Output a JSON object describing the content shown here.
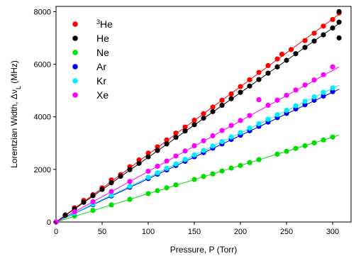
{
  "chart_data": {
    "type": "scatter",
    "xlabel": "Pressure, P (Torr)",
    "ylabel": "Lorentzian Width, Δν",
    "ylabel_sub": "L",
    "ylabel_unit": " (MHz)",
    "xlim": [
      0,
      320
    ],
    "ylim": [
      0,
      8200
    ],
    "xticks": [
      0,
      50,
      100,
      150,
      200,
      250,
      300
    ],
    "yticks": [
      0,
      2000,
      4000,
      6000,
      8000
    ],
    "grid": false,
    "legend_position": "top-left",
    "series": [
      {
        "name": "He",
        "name_sup": "3",
        "color": "#ff0000",
        "fit": [
          [
            0,
            0
          ],
          [
            307,
            7900
          ]
        ],
        "points": [
          [
            0,
            0
          ],
          [
            10,
            270
          ],
          [
            20,
            540
          ],
          [
            30,
            820
          ],
          [
            40,
            1040
          ],
          [
            50,
            1300
          ],
          [
            60,
            1600
          ],
          [
            70,
            1800
          ],
          [
            80,
            2100
          ],
          [
            90,
            2360
          ],
          [
            100,
            2620
          ],
          [
            110,
            2860
          ],
          [
            120,
            3120
          ],
          [
            130,
            3380
          ],
          [
            140,
            3610
          ],
          [
            150,
            3870
          ],
          [
            160,
            4120
          ],
          [
            170,
            4370
          ],
          [
            180,
            4630
          ],
          [
            190,
            4870
          ],
          [
            200,
            5150
          ],
          [
            210,
            5410
          ],
          [
            220,
            5690
          ],
          [
            230,
            5950
          ],
          [
            240,
            6200
          ],
          [
            245,
            6380
          ],
          [
            255,
            6560
          ],
          [
            270,
            6900
          ],
          [
            280,
            7180
          ],
          [
            290,
            7450
          ],
          [
            300,
            7700
          ],
          [
            307,
            7950
          ]
        ]
      },
      {
        "name": "He",
        "color": "#000000",
        "fit": [
          [
            0,
            0
          ],
          [
            307,
            7550
          ]
        ],
        "points": [
          [
            0,
            0
          ],
          [
            10,
            250
          ],
          [
            20,
            500
          ],
          [
            30,
            750
          ],
          [
            40,
            1000
          ],
          [
            50,
            1240
          ],
          [
            60,
            1490
          ],
          [
            70,
            1740
          ],
          [
            80,
            1990
          ],
          [
            90,
            2230
          ],
          [
            100,
            2480
          ],
          [
            110,
            2720
          ],
          [
            120,
            2970
          ],
          [
            130,
            3220
          ],
          [
            140,
            3460
          ],
          [
            150,
            3700
          ],
          [
            160,
            3950
          ],
          [
            170,
            4200
          ],
          [
            180,
            4440
          ],
          [
            190,
            4690
          ],
          [
            200,
            4930
          ],
          [
            210,
            5170
          ],
          [
            220,
            5420
          ],
          [
            230,
            5660
          ],
          [
            240,
            5900
          ],
          [
            250,
            6150
          ],
          [
            260,
            6400
          ],
          [
            270,
            6640
          ],
          [
            280,
            6880
          ],
          [
            290,
            7120
          ],
          [
            300,
            7380
          ],
          [
            307,
            7600
          ],
          [
            307,
            8000
          ],
          [
            307,
            7000
          ]
        ]
      },
      {
        "name": "Ne",
        "color": "#00dd00",
        "fit": [
          [
            0,
            0
          ],
          [
            307,
            3300
          ]
        ],
        "points": [
          [
            0,
            0
          ],
          [
            20,
            230
          ],
          [
            40,
            440
          ],
          [
            60,
            650
          ],
          [
            80,
            860
          ],
          [
            100,
            1080
          ],
          [
            110,
            1190
          ],
          [
            120,
            1300
          ],
          [
            130,
            1410
          ],
          [
            150,
            1620
          ],
          [
            160,
            1730
          ],
          [
            170,
            1830
          ],
          [
            180,
            1940
          ],
          [
            190,
            2050
          ],
          [
            200,
            2150
          ],
          [
            210,
            2260
          ],
          [
            220,
            2370
          ],
          [
            240,
            2580
          ],
          [
            250,
            2690
          ],
          [
            260,
            2800
          ],
          [
            270,
            2900
          ],
          [
            280,
            3010
          ],
          [
            290,
            3120
          ],
          [
            300,
            3230
          ]
        ]
      },
      {
        "name": "Ar",
        "color": "#0000ee",
        "fit": [
          [
            0,
            0
          ],
          [
            307,
            5050
          ]
        ],
        "points": [
          [
            0,
            0
          ],
          [
            20,
            330
          ],
          [
            40,
            660
          ],
          [
            60,
            990
          ],
          [
            80,
            1320
          ],
          [
            100,
            1650
          ],
          [
            110,
            1820
          ],
          [
            120,
            1980
          ],
          [
            130,
            2150
          ],
          [
            140,
            2310
          ],
          [
            150,
            2480
          ],
          [
            160,
            2640
          ],
          [
            170,
            2810
          ],
          [
            180,
            2970
          ],
          [
            190,
            3140
          ],
          [
            200,
            3300
          ],
          [
            210,
            3470
          ],
          [
            220,
            3640
          ],
          [
            230,
            3800
          ],
          [
            240,
            3970
          ],
          [
            250,
            4130
          ],
          [
            260,
            4300
          ],
          [
            270,
            4460
          ],
          [
            280,
            4630
          ],
          [
            290,
            4790
          ],
          [
            300,
            4960
          ]
        ]
      },
      {
        "name": "Kr",
        "color": "#00eeff",
        "fit": [
          [
            0,
            0
          ],
          [
            307,
            5200
          ]
        ],
        "points": [
          [
            0,
            0
          ],
          [
            20,
            340
          ],
          [
            40,
            680
          ],
          [
            60,
            1020
          ],
          [
            80,
            1360
          ],
          [
            100,
            1700
          ],
          [
            110,
            1870
          ],
          [
            120,
            2040
          ],
          [
            130,
            2210
          ],
          [
            140,
            2380
          ],
          [
            150,
            2550
          ],
          [
            160,
            2720
          ],
          [
            170,
            2890
          ],
          [
            180,
            3060
          ],
          [
            190,
            3230
          ],
          [
            200,
            3400
          ],
          [
            210,
            3570
          ],
          [
            220,
            3740
          ],
          [
            230,
            3910
          ],
          [
            240,
            4080
          ],
          [
            250,
            4250
          ],
          [
            260,
            4420
          ],
          [
            270,
            4590
          ],
          [
            280,
            4760
          ],
          [
            290,
            4930
          ],
          [
            300,
            5100
          ]
        ]
      },
      {
        "name": "Xe",
        "color": "#ff00ff",
        "fit": [
          [
            0,
            0
          ],
          [
            307,
            5900
          ]
        ],
        "points": [
          [
            0,
            0
          ],
          [
            20,
            390
          ],
          [
            40,
            770
          ],
          [
            60,
            1160
          ],
          [
            80,
            1540
          ],
          [
            100,
            1930
          ],
          [
            110,
            2120
          ],
          [
            120,
            2320
          ],
          [
            130,
            2510
          ],
          [
            140,
            2700
          ],
          [
            150,
            2900
          ],
          [
            160,
            3090
          ],
          [
            170,
            3280
          ],
          [
            180,
            3480
          ],
          [
            190,
            3670
          ],
          [
            200,
            3860
          ],
          [
            210,
            4050
          ],
          [
            220,
            4650
          ],
          [
            230,
            4440
          ],
          [
            240,
            4630
          ],
          [
            250,
            4820
          ],
          [
            260,
            5020
          ],
          [
            270,
            5210
          ],
          [
            280,
            5400
          ],
          [
            290,
            5600
          ],
          [
            300,
            5900
          ]
        ]
      }
    ]
  }
}
